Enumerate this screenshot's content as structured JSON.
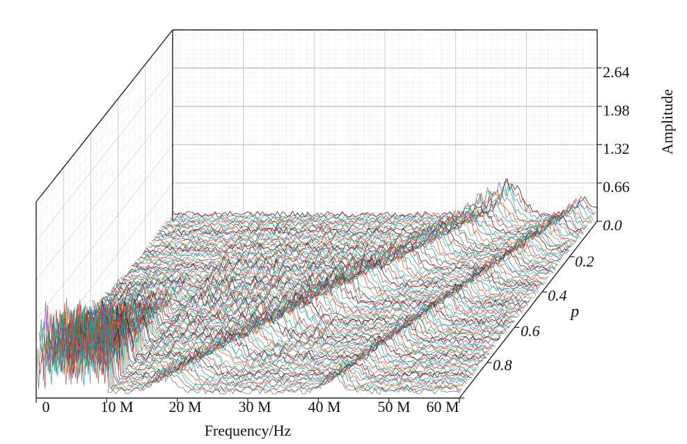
{
  "chart_data": {
    "type": "line",
    "view": "3d-waterfall",
    "xlabel": "Frequency/Hz",
    "ylabel": "Amplitude",
    "zlabel": "p",
    "x_ticks": [
      "0",
      "10 M",
      "20 M",
      "30 M",
      "40 M",
      "50 M",
      "60 M"
    ],
    "x_range": [
      0,
      60000000
    ],
    "y_ticks": [
      "0.66",
      "1.32",
      "1.98",
      "2.64"
    ],
    "y_range": [
      0,
      3.2
    ],
    "p_ticks": [
      "0.0",
      "0.2",
      "0.4",
      "0.6",
      "0.8"
    ],
    "p_range": [
      0,
      1
    ],
    "grid": true,
    "series_count": 100,
    "line_colors": [
      "#1a1a1a",
      "#c0392b",
      "#2e86c1",
      "#27ae60",
      "#8e44ad",
      "#d35400",
      "#7f8c8d",
      "#16a085",
      "#b03a2e",
      "#5d6d7e"
    ],
    "features": {
      "low_frequency_band": {
        "x_range_hz": [
          0,
          10000000
        ],
        "peak_amplitude_at_p1": 1.7
      },
      "moving_peak": {
        "x_hz_at_p0": 48000000,
        "x_hz_at_p1": 18000000,
        "peak_amplitude": 0.5
      },
      "second_ridge": {
        "x_hz_at_p0": 58000000,
        "x_hz_at_p1": 42000000,
        "peak_amplitude": 0.3
      },
      "noise_floor": 0.12
    }
  }
}
